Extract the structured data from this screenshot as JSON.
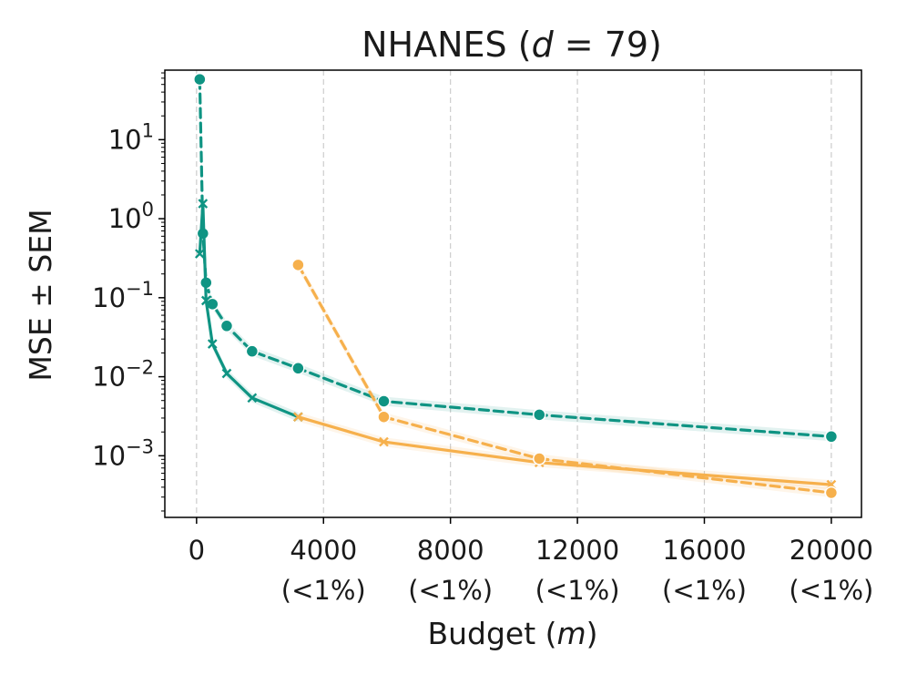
{
  "chart_data": {
    "type": "line",
    "title": "NHANES (",
    "title_var": "d",
    "title_eq": " = 79)",
    "xlabel": "Budget (",
    "xlabel_var": "m",
    "xlabel_close": ")",
    "ylabel": "MSE ± SEM",
    "xlim": [
      -1000,
      20950
    ],
    "ylim_log10": [
      -3.78,
      1.88
    ],
    "y_scale": "log",
    "grid": "vertical dashed",
    "x_ticks": [
      {
        "value": 0,
        "label": "0",
        "sub": ""
      },
      {
        "value": 4000,
        "label": "4000",
        "sub": "(<1%)"
      },
      {
        "value": 8000,
        "label": "8000",
        "sub": "(<1%)"
      },
      {
        "value": 12000,
        "label": "12000",
        "sub": "(<1%)"
      },
      {
        "value": 16000,
        "label": "16000",
        "sub": "(<1%)"
      },
      {
        "value": 20000,
        "label": "20000",
        "sub": "(<1%)"
      }
    ],
    "y_ticks": [
      {
        "exp": 1,
        "base": "10",
        "sup": "1"
      },
      {
        "exp": 0,
        "base": "10",
        "sup": "0"
      },
      {
        "exp": -1,
        "base": "10",
        "sup": "−1"
      },
      {
        "exp": -2,
        "base": "10",
        "sup": "−2"
      },
      {
        "exp": -3,
        "base": "10",
        "sup": "−3"
      }
    ],
    "series": [
      {
        "name": "teal-dashed-circle",
        "color": "#0f9483",
        "dash": "10 6",
        "marker": "circle",
        "x": [
          100,
          200,
          300,
          500,
          950,
          1750,
          3200,
          5900,
          10800,
          20000
        ],
        "y": [
          58,
          0.65,
          0.155,
          0.083,
          0.044,
          0.021,
          0.0128,
          0.0049,
          0.0033,
          0.00175
        ]
      },
      {
        "name": "teal-solid-cross",
        "color": "#0f9483",
        "dash": "",
        "marker": "x",
        "x": [
          100,
          200,
          300,
          500,
          950,
          1750,
          3200
        ],
        "y": [
          0.36,
          1.55,
          0.092,
          0.026,
          0.011,
          0.0054,
          0.0031
        ]
      },
      {
        "name": "orange-solid-cross",
        "color": "#f6b04c",
        "dash": "",
        "marker": "x",
        "x": [
          3200,
          5900,
          10800,
          20000
        ],
        "y": [
          0.0031,
          0.0015,
          0.00082,
          0.00043
        ]
      },
      {
        "name": "orange-dashed-circle",
        "color": "#f6b04c",
        "dash": "10 6",
        "marker": "circle",
        "x": [
          3200,
          5900,
          10800,
          20000
        ],
        "y": [
          0.26,
          0.0031,
          0.00092,
          0.00034
        ]
      }
    ]
  }
}
